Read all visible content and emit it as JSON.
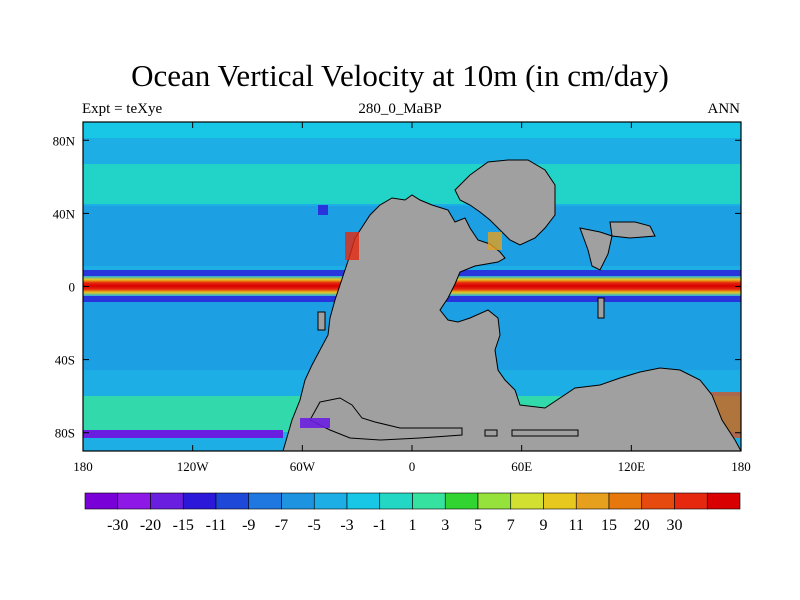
{
  "title": "Ocean Vertical Velocity at 10m (in cm/day)",
  "left_string": "Expt = teXye",
  "center_string": "280_0_MaBP",
  "right_string": "ANN",
  "map": {
    "projection": "cylindrical equidistant",
    "lon_range": [
      -180,
      180
    ],
    "lat_range": [
      -90,
      90
    ],
    "land_color": "#a0a0a0",
    "coastline_color": "#000000"
  },
  "x_ticks": [
    {
      "lon": -180,
      "label": "180"
    },
    {
      "lon": -120,
      "label": "120W"
    },
    {
      "lon": -60,
      "label": "60W"
    },
    {
      "lon": 0,
      "label": "0"
    },
    {
      "lon": 60,
      "label": "60E"
    },
    {
      "lon": 120,
      "label": "120E"
    },
    {
      "lon": 180,
      "label": "180"
    }
  ],
  "y_ticks": [
    {
      "lat": 80,
      "label": "80N"
    },
    {
      "lat": 40,
      "label": "40N"
    },
    {
      "lat": 0,
      "label": "0"
    },
    {
      "lat": -40,
      "label": "40S"
    },
    {
      "lat": -80,
      "label": "80S"
    }
  ],
  "colorbar": {
    "colors": [
      "#7a00d8",
      "#8e18e6",
      "#6a1fe0",
      "#2c18d8",
      "#1e48d8",
      "#1e78e0",
      "#1e94e0",
      "#1eaee6",
      "#18c6e6",
      "#22d8c4",
      "#36e2a0",
      "#32d432",
      "#96e23c",
      "#d2e032",
      "#e6c81e",
      "#e6a01e",
      "#e6780e",
      "#e64a0e",
      "#e6280e",
      "#d80000"
    ],
    "labels": [
      "-30",
      "-20",
      "-15",
      "-11",
      "-9",
      "-7",
      "-5",
      "-3",
      "-1",
      "1",
      "3",
      "5",
      "7",
      "9",
      "11",
      "15",
      "20",
      "30"
    ]
  }
}
